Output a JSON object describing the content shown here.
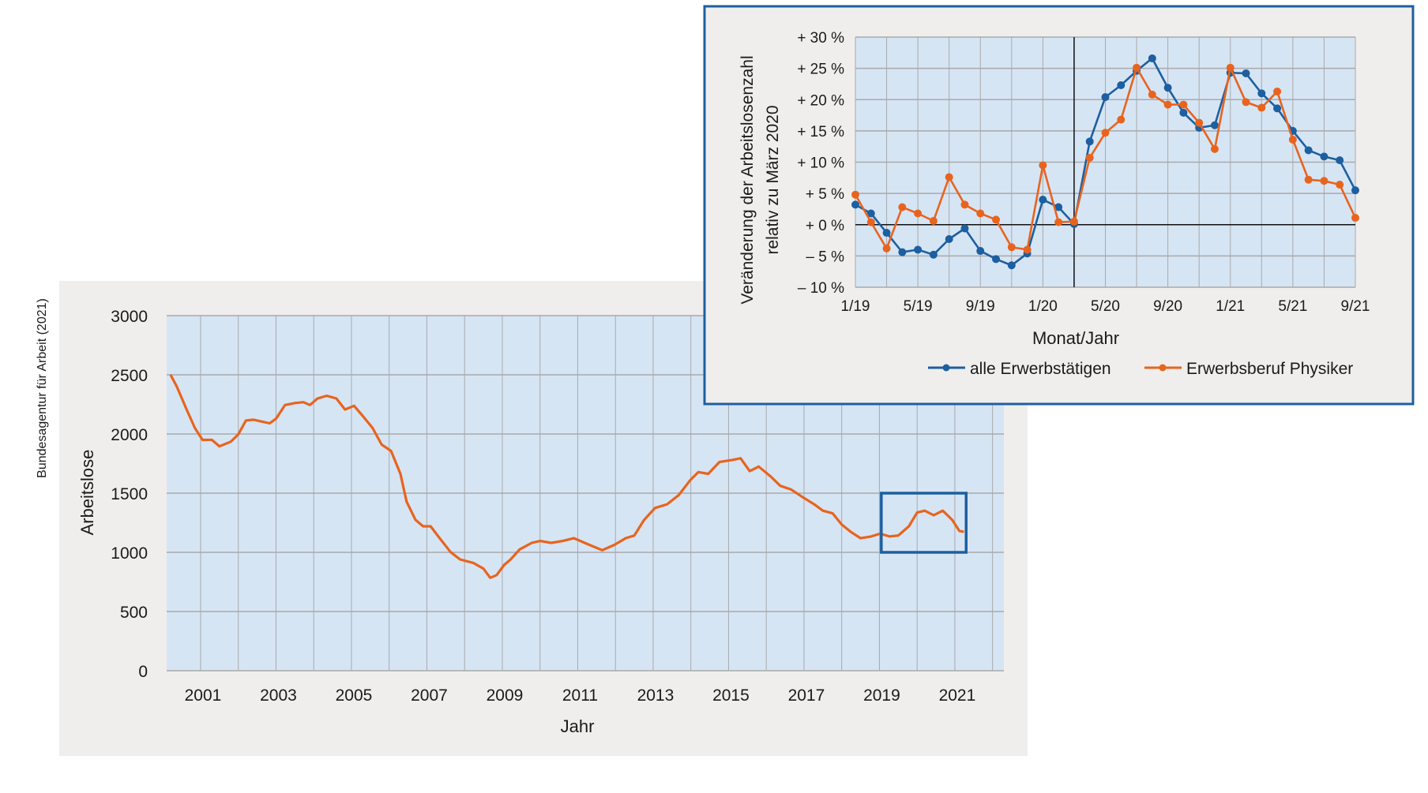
{
  "chart_data": [
    {
      "type": "line",
      "title": "",
      "source_label": "Bundesagentur für Arbeit (2021)",
      "xlabel": "Jahr",
      "ylabel": "Arbeitslose",
      "xlim": [
        2000.1,
        2022.3
      ],
      "ylim": [
        0,
        3000
      ],
      "yticks": [
        "0",
        "500",
        "1000",
        "1500",
        "2000",
        "2500",
        "3000"
      ],
      "xticks": [
        "2001",
        "2003",
        "2005",
        "2007",
        "2009",
        "2011",
        "2013",
        "2015",
        "2017",
        "2019",
        "2021"
      ],
      "grid": true,
      "color": "#e8641e",
      "highlight_box": {
        "x": [
          2019.05,
          2021.3
        ],
        "y": [
          1000,
          1500
        ],
        "color": "#1d5fa0"
      },
      "series": [
        {
          "name": "Arbeitslose",
          "x": [
            2000.2,
            2000.37,
            2000.63,
            2000.85,
            2001.05,
            2001.3,
            2001.5,
            2001.8,
            2002.0,
            2002.2,
            2002.4,
            2002.63,
            2002.83,
            2003.0,
            2003.24,
            2003.5,
            2003.73,
            2003.9,
            2004.1,
            2004.34,
            2004.6,
            2004.83,
            2005.07,
            2005.3,
            2005.56,
            2005.8,
            2006.05,
            2006.3,
            2006.46,
            2006.7,
            2006.9,
            2007.1,
            2007.34,
            2007.63,
            2007.88,
            2008.24,
            2008.5,
            2008.68,
            2008.85,
            2009.05,
            2009.22,
            2009.46,
            2009.78,
            2010.0,
            2010.3,
            2010.6,
            2010.9,
            2011.3,
            2011.65,
            2011.98,
            2012.27,
            2012.5,
            2012.76,
            2013.05,
            2013.37,
            2013.68,
            2013.98,
            2014.2,
            2014.46,
            2014.76,
            2015.07,
            2015.32,
            2015.56,
            2015.8,
            2016.12,
            2016.37,
            2016.66,
            2016.95,
            2017.27,
            2017.5,
            2017.76,
            2018.0,
            2018.24,
            2018.5,
            2018.78,
            2019.02,
            2019.27,
            2019.5,
            2019.78,
            2020.0,
            2020.2,
            2020.44,
            2020.68,
            2020.93,
            2021.12,
            2021.24
          ],
          "y": [
            2502,
            2400,
            2207,
            2050,
            1950,
            1950,
            1896,
            1935,
            1997,
            2113,
            2121,
            2105,
            2090,
            2129,
            2245,
            2261,
            2269,
            2245,
            2300,
            2323,
            2300,
            2207,
            2238,
            2152,
            2051,
            1911,
            1857,
            1663,
            1430,
            1274,
            1220,
            1220,
            1119,
            1002,
            940,
            909,
            862,
            785,
            808,
            893,
            940,
            1025,
            1080,
            1096,
            1080,
            1096,
            1119,
            1064,
            1018,
            1064,
            1119,
            1142,
            1274,
            1375,
            1406,
            1484,
            1608,
            1678,
            1663,
            1764,
            1779,
            1795,
            1686,
            1725,
            1640,
            1562,
            1531,
            1469,
            1406,
            1352,
            1329,
            1235,
            1173,
            1119,
            1134,
            1158,
            1134,
            1142,
            1220,
            1336,
            1352,
            1313,
            1352,
            1274,
            1181,
            1173
          ]
        }
      ]
    },
    {
      "type": "line",
      "title": "",
      "xlabel": "Monat/Jahr",
      "ylabel": [
        "Veränderung der Arbeitslosenzahl",
        "relativ zu März 2020"
      ],
      "ylim": [
        -10,
        30
      ],
      "yticks": [
        "– 10 %",
        "– 5 %",
        "+ 0 %",
        "+ 5 %",
        "+ 10 %",
        "+ 15 %",
        "+ 20 %",
        "+ 25 %",
        "+ 30 %"
      ],
      "xticks": [
        "1/19",
        "5/19",
        "9/19",
        "1/20",
        "5/20",
        "9/20",
        "1/21",
        "5/21",
        "9/21"
      ],
      "x_months": 33,
      "reference_month_index": 14,
      "grid": true,
      "legend_position": "bottom",
      "series": [
        {
          "name": "alle Erwerbstätigen",
          "color": "#1d5fa0",
          "values": [
            3.2,
            1.8,
            -1.3,
            -4.4,
            -4.0,
            -4.8,
            -2.3,
            -0.6,
            -4.2,
            -5.5,
            -6.5,
            -4.6,
            4.0,
            2.8,
            0.1,
            13.3,
            20.4,
            22.3,
            24.6,
            26.6,
            21.9,
            17.9,
            15.5,
            15.9,
            24.3,
            24.2,
            21.0,
            18.6,
            15.0,
            11.9,
            10.9,
            10.3,
            5.5
          ]
        },
        {
          "name": "Erwerbsberuf Physiker",
          "color": "#e8641e",
          "values": [
            4.8,
            0.4,
            -3.8,
            2.8,
            1.8,
            0.6,
            7.6,
            3.2,
            1.8,
            0.8,
            -3.6,
            -4.0,
            9.5,
            0.4,
            0.5,
            10.7,
            14.7,
            16.8,
            25.1,
            20.8,
            19.2,
            19.2,
            16.3,
            12.1,
            25.1,
            19.6,
            18.7,
            21.3,
            13.6,
            7.2,
            7.0,
            6.4,
            1.1
          ]
        }
      ]
    }
  ]
}
